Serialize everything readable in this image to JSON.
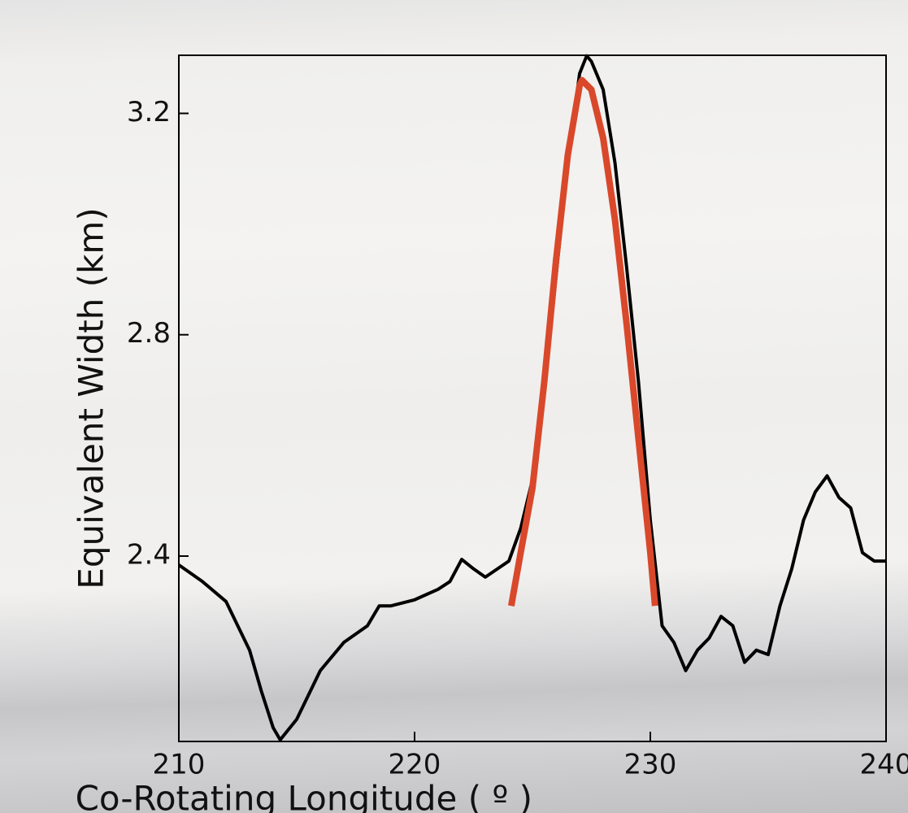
{
  "chart_data": {
    "type": "line",
    "xlabel": "Co-Rotating Longitude ( º )",
    "ylabel": "Equivalent Width (km)",
    "xlim": [
      210,
      240
    ],
    "ylim": [
      2.065,
      3.305
    ],
    "xticks": [
      210,
      220,
      230,
      240
    ],
    "yticks": [
      2.4,
      2.8,
      3.2
    ],
    "series": [
      {
        "color": "#000000",
        "x": [
          210,
          211,
          212,
          213,
          213.5,
          214,
          214.3,
          215,
          216,
          217,
          218,
          218.5,
          219,
          220,
          221,
          221.5,
          222,
          222.5,
          223,
          224,
          224.5,
          225,
          225.5,
          226,
          226.5,
          227,
          227.3,
          227.5,
          228,
          228.5,
          229,
          229.5,
          230,
          230.5,
          231,
          231.5,
          232,
          232.5,
          233,
          233.5,
          234,
          234.5,
          235,
          235.5,
          236,
          236.5,
          237,
          237.5,
          238,
          238.5,
          239,
          239.5,
          240
        ],
        "values": [
          2.384,
          2.354,
          2.318,
          2.23,
          2.156,
          2.09,
          2.068,
          2.105,
          2.193,
          2.244,
          2.274,
          2.31,
          2.31,
          2.321,
          2.34,
          2.354,
          2.394,
          2.377,
          2.362,
          2.391,
          2.45,
          2.538,
          2.7,
          2.905,
          3.111,
          3.272,
          3.304,
          3.294,
          3.243,
          3.111,
          2.92,
          2.714,
          2.465,
          2.274,
          2.244,
          2.193,
          2.23,
          2.252,
          2.291,
          2.274,
          2.208,
          2.23,
          2.222,
          2.31,
          2.377,
          2.465,
          2.516,
          2.545,
          2.506,
          2.487,
          2.406,
          2.391,
          2.391
        ]
      },
      {
        "color": "#d9482b",
        "x": [
          224.1,
          224.5,
          225,
          225.5,
          226,
          226.5,
          227,
          227.1,
          227.5,
          228,
          228.5,
          229,
          229.5,
          230,
          230.2
        ],
        "values": [
          2.31,
          2.406,
          2.523,
          2.714,
          2.934,
          3.125,
          3.25,
          3.26,
          3.243,
          3.155,
          3.008,
          2.817,
          2.611,
          2.406,
          2.31
        ]
      }
    ]
  }
}
